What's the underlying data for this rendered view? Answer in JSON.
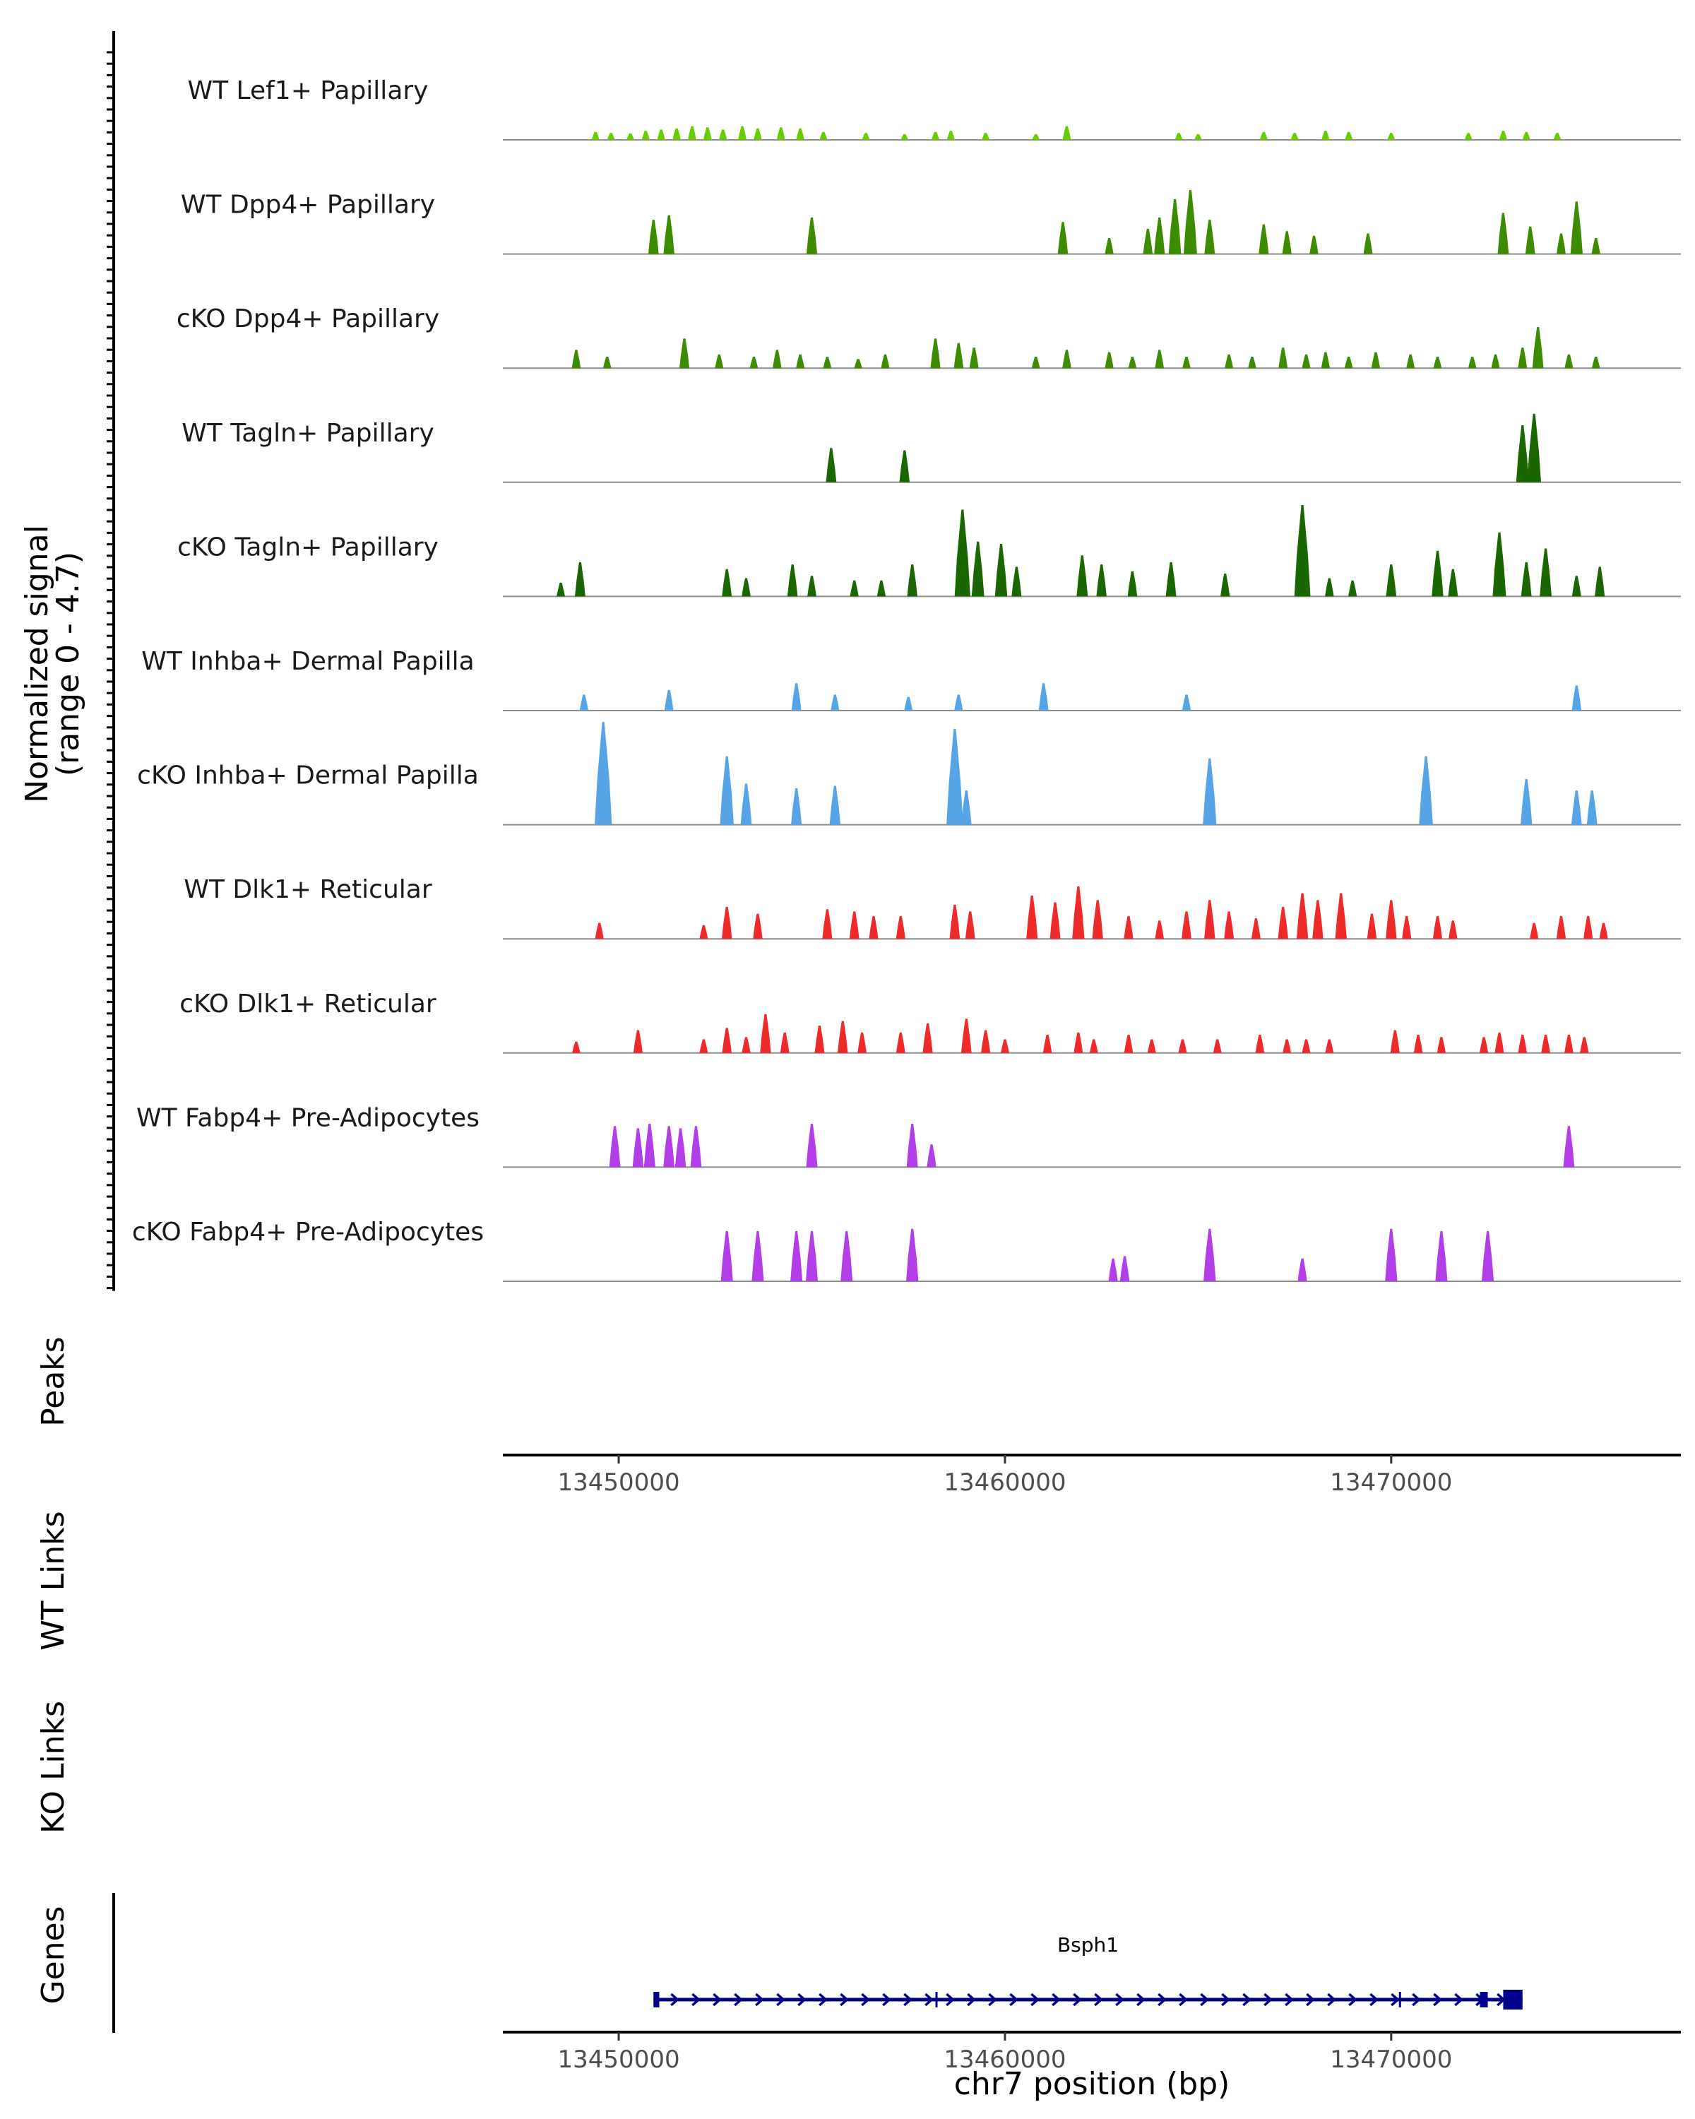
{
  "chart_data": {
    "type": "area",
    "title": "",
    "chromosome": "chr7",
    "xlabel": "chr7 position (bp)",
    "xlim": [
      13447000,
      13477500
    ],
    "x_ticks": [
      13450000,
      13460000,
      13470000
    ],
    "x_tick_labels": [
      "13450000",
      "13460000",
      "13470000"
    ],
    "signal_axis_label": [
      "Normalized signal",
      "(range 0 - 4.7)"
    ],
    "ylim": [
      0,
      4.7
    ],
    "track_labels": {
      "peaks": "Peaks",
      "wt_links": "WT Links",
      "ko_links": "KO Links",
      "genes": "Genes"
    },
    "series": [
      {
        "name": "WT Lef1+ Papillary",
        "color": "#66cc00",
        "peaks": [
          [
            13449400,
            0.35
          ],
          [
            13449800,
            0.3
          ],
          [
            13450300,
            0.28
          ],
          [
            13450700,
            0.4
          ],
          [
            13451100,
            0.45
          ],
          [
            13451500,
            0.5
          ],
          [
            13451900,
            0.6
          ],
          [
            13452300,
            0.55
          ],
          [
            13452700,
            0.45
          ],
          [
            13453200,
            0.6
          ],
          [
            13453600,
            0.5
          ],
          [
            13454200,
            0.55
          ],
          [
            13454700,
            0.5
          ],
          [
            13455300,
            0.35
          ],
          [
            13456400,
            0.3
          ],
          [
            13457400,
            0.25
          ],
          [
            13458200,
            0.35
          ],
          [
            13458600,
            0.4
          ],
          [
            13459500,
            0.3
          ],
          [
            13460800,
            0.25
          ],
          [
            13461600,
            0.6
          ],
          [
            13464500,
            0.3
          ],
          [
            13465000,
            0.25
          ],
          [
            13466700,
            0.35
          ],
          [
            13467500,
            0.3
          ],
          [
            13468300,
            0.4
          ],
          [
            13468900,
            0.35
          ],
          [
            13470000,
            0.3
          ],
          [
            13472000,
            0.3
          ],
          [
            13472900,
            0.4
          ],
          [
            13473500,
            0.35
          ],
          [
            13474300,
            0.3
          ]
        ]
      },
      {
        "name": "WT Dpp4+ Papillary",
        "color": "#3d8c00",
        "peaks": [
          [
            13450900,
            1.5
          ],
          [
            13451300,
            1.7
          ],
          [
            13455000,
            1.6
          ],
          [
            13461500,
            1.4
          ],
          [
            13462700,
            0.7
          ],
          [
            13463700,
            1.1
          ],
          [
            13464000,
            1.6
          ],
          [
            13464400,
            2.4
          ],
          [
            13464800,
            2.8
          ],
          [
            13465300,
            1.5
          ],
          [
            13466700,
            1.3
          ],
          [
            13467300,
            1.0
          ],
          [
            13468000,
            0.8
          ],
          [
            13469400,
            0.9
          ],
          [
            13472900,
            1.8
          ],
          [
            13473600,
            1.2
          ],
          [
            13474400,
            0.9
          ],
          [
            13474800,
            2.3
          ],
          [
            13475300,
            0.7
          ]
        ]
      },
      {
        "name": "cKO Dpp4+ Papillary",
        "color": "#3d8c00",
        "peaks": [
          [
            13448900,
            0.8
          ],
          [
            13449700,
            0.5
          ],
          [
            13451700,
            1.3
          ],
          [
            13452600,
            0.6
          ],
          [
            13453500,
            0.5
          ],
          [
            13454100,
            0.8
          ],
          [
            13454700,
            0.6
          ],
          [
            13455400,
            0.5
          ],
          [
            13456200,
            0.4
          ],
          [
            13456900,
            0.6
          ],
          [
            13458200,
            1.3
          ],
          [
            13458800,
            1.1
          ],
          [
            13459200,
            0.9
          ],
          [
            13460800,
            0.5
          ],
          [
            13461600,
            0.8
          ],
          [
            13462700,
            0.7
          ],
          [
            13463300,
            0.5
          ],
          [
            13464000,
            0.8
          ],
          [
            13464700,
            0.5
          ],
          [
            13465800,
            0.6
          ],
          [
            13466400,
            0.5
          ],
          [
            13467200,
            0.9
          ],
          [
            13467800,
            0.6
          ],
          [
            13468300,
            0.7
          ],
          [
            13468900,
            0.5
          ],
          [
            13469600,
            0.7
          ],
          [
            13470500,
            0.6
          ],
          [
            13471200,
            0.5
          ],
          [
            13472100,
            0.5
          ],
          [
            13472700,
            0.6
          ],
          [
            13473400,
            0.9
          ],
          [
            13473800,
            1.8
          ],
          [
            13474600,
            0.6
          ],
          [
            13475300,
            0.5
          ]
        ]
      },
      {
        "name": "WT Tagln+ Papillary",
        "color": "#1a6600",
        "peaks": [
          [
            13455500,
            1.5
          ],
          [
            13457400,
            1.4
          ],
          [
            13473400,
            2.5
          ],
          [
            13473700,
            3.0
          ]
        ]
      },
      {
        "name": "cKO Tagln+ Papillary",
        "color": "#1a6600",
        "peaks": [
          [
            13448500,
            0.6
          ],
          [
            13449000,
            1.5
          ],
          [
            13452800,
            1.2
          ],
          [
            13453300,
            0.8
          ],
          [
            13454500,
            1.4
          ],
          [
            13455000,
            0.9
          ],
          [
            13456100,
            0.7
          ],
          [
            13456800,
            0.7
          ],
          [
            13457600,
            1.4
          ],
          [
            13458900,
            3.8
          ],
          [
            13459300,
            2.4
          ],
          [
            13459900,
            2.3
          ],
          [
            13460300,
            1.3
          ],
          [
            13462000,
            1.8
          ],
          [
            13462500,
            1.4
          ],
          [
            13463300,
            1.1
          ],
          [
            13464300,
            1.5
          ],
          [
            13465700,
            1.0
          ],
          [
            13467700,
            4.0
          ],
          [
            13468400,
            0.8
          ],
          [
            13469000,
            0.7
          ],
          [
            13470000,
            1.4
          ],
          [
            13471200,
            2.0
          ],
          [
            13471600,
            1.2
          ],
          [
            13472800,
            2.8
          ],
          [
            13473500,
            1.5
          ],
          [
            13474000,
            2.1
          ],
          [
            13474800,
            0.9
          ],
          [
            13475400,
            1.3
          ]
        ]
      },
      {
        "name": "WT Inhba+ Dermal Papilla",
        "color": "#56a4e6",
        "peaks": [
          [
            13449100,
            0.7
          ],
          [
            13451300,
            0.9
          ],
          [
            13454600,
            1.2
          ],
          [
            13455600,
            0.7
          ],
          [
            13457500,
            0.6
          ],
          [
            13458800,
            0.7
          ],
          [
            13461000,
            1.2
          ],
          [
            13464700,
            0.7
          ],
          [
            13474800,
            1.1
          ]
        ]
      },
      {
        "name": "cKO Inhba+ Dermal Papilla",
        "color": "#56a4e6",
        "peaks": [
          [
            13449600,
            4.5
          ],
          [
            13452800,
            3.0
          ],
          [
            13453300,
            1.8
          ],
          [
            13454600,
            1.6
          ],
          [
            13455600,
            1.7
          ],
          [
            13458700,
            4.2
          ],
          [
            13459000,
            1.5
          ],
          [
            13465300,
            2.9
          ],
          [
            13470900,
            3.0
          ],
          [
            13473500,
            2.0
          ],
          [
            13474800,
            1.5
          ],
          [
            13475200,
            1.5
          ]
        ]
      },
      {
        "name": "WT Dlk1+ Reticular",
        "color": "#ee2a2a",
        "peaks": [
          [
            13449500,
            0.7
          ],
          [
            13452200,
            0.6
          ],
          [
            13452800,
            1.4
          ],
          [
            13453600,
            1.1
          ],
          [
            13455400,
            1.3
          ],
          [
            13456100,
            1.2
          ],
          [
            13456600,
            1.0
          ],
          [
            13457300,
            1.0
          ],
          [
            13458700,
            1.5
          ],
          [
            13459100,
            1.2
          ],
          [
            13460700,
            1.9
          ],
          [
            13461300,
            1.6
          ],
          [
            13461900,
            2.3
          ],
          [
            13462400,
            1.7
          ],
          [
            13463200,
            1.0
          ],
          [
            13464000,
            0.8
          ],
          [
            13464700,
            1.2
          ],
          [
            13465300,
            1.7
          ],
          [
            13465800,
            1.2
          ],
          [
            13466500,
            0.9
          ],
          [
            13467200,
            1.4
          ],
          [
            13467700,
            2.0
          ],
          [
            13468100,
            1.7
          ],
          [
            13468700,
            2.0
          ],
          [
            13469500,
            1.1
          ],
          [
            13470000,
            1.7
          ],
          [
            13470400,
            1.0
          ],
          [
            13471200,
            1.0
          ],
          [
            13471600,
            0.8
          ],
          [
            13473700,
            0.7
          ],
          [
            13474400,
            1.0
          ],
          [
            13475100,
            1.0
          ],
          [
            13475500,
            0.7
          ]
        ]
      },
      {
        "name": "cKO Dlk1+ Reticular",
        "color": "#ee2a2a",
        "peaks": [
          [
            13448900,
            0.5
          ],
          [
            13450500,
            1.0
          ],
          [
            13452200,
            0.6
          ],
          [
            13452800,
            1.1
          ],
          [
            13453300,
            0.7
          ],
          [
            13453800,
            1.7
          ],
          [
            13454300,
            0.9
          ],
          [
            13455200,
            1.2
          ],
          [
            13455800,
            1.4
          ],
          [
            13456300,
            0.9
          ],
          [
            13457300,
            0.9
          ],
          [
            13458000,
            1.3
          ],
          [
            13459000,
            1.5
          ],
          [
            13459500,
            1.0
          ],
          [
            13460000,
            0.6
          ],
          [
            13461100,
            0.8
          ],
          [
            13461900,
            0.9
          ],
          [
            13462300,
            0.6
          ],
          [
            13463200,
            0.8
          ],
          [
            13463800,
            0.6
          ],
          [
            13464600,
            0.6
          ],
          [
            13465500,
            0.6
          ],
          [
            13466600,
            0.8
          ],
          [
            13467300,
            0.6
          ],
          [
            13467800,
            0.6
          ],
          [
            13468400,
            0.6
          ],
          [
            13470100,
            1.0
          ],
          [
            13470700,
            0.8
          ],
          [
            13471300,
            0.7
          ],
          [
            13472400,
            0.7
          ],
          [
            13472800,
            0.9
          ],
          [
            13473400,
            0.8
          ],
          [
            13474000,
            0.8
          ],
          [
            13474600,
            0.8
          ],
          [
            13475000,
            0.7
          ]
        ]
      },
      {
        "name": "WT Fabp4+ Pre-Adipocytes",
        "color": "#b23ee8",
        "peaks": [
          [
            13449900,
            1.8
          ],
          [
            13450500,
            1.7
          ],
          [
            13450800,
            1.9
          ],
          [
            13451300,
            1.8
          ],
          [
            13451600,
            1.7
          ],
          [
            13452000,
            1.8
          ],
          [
            13455000,
            1.9
          ],
          [
            13457600,
            1.9
          ],
          [
            13458100,
            1.0
          ],
          [
            13474600,
            1.8
          ]
        ]
      },
      {
        "name": "cKO Fabp4+ Pre-Adipocytes",
        "color": "#b23ee8",
        "peaks": [
          [
            13452800,
            2.2
          ],
          [
            13453600,
            2.2
          ],
          [
            13454600,
            2.2
          ],
          [
            13455000,
            2.2
          ],
          [
            13455900,
            2.2
          ],
          [
            13457600,
            2.3
          ],
          [
            13462800,
            1.0
          ],
          [
            13463100,
            1.1
          ],
          [
            13465300,
            2.3
          ],
          [
            13467700,
            1.0
          ],
          [
            13470000,
            2.3
          ],
          [
            13471300,
            2.2
          ],
          [
            13472500,
            2.2
          ]
        ]
      }
    ],
    "genes": [
      {
        "name": "Bsph1",
        "strand": "+",
        "start": 13450900,
        "end": 13473400,
        "color": "#00008b",
        "exons": [
          [
            13450900,
            13451050
          ],
          [
            13458200,
            13458250
          ],
          [
            13470200,
            13470250
          ],
          [
            13472300,
            13472500
          ],
          [
            13472900,
            13473400
          ]
        ]
      }
    ]
  }
}
